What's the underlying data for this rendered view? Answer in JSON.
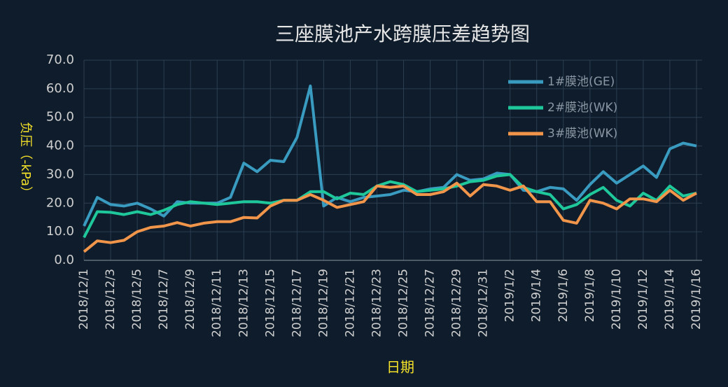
{
  "chart_data": {
    "type": "line",
    "title": "三座膜池产水跨膜压差趋势图",
    "x_label": "日期",
    "y_label": "负压（-kPa）",
    "categories": [
      "2018/12/1",
      null,
      "2018/12/3",
      null,
      "2018/12/5",
      null,
      "2018/12/7",
      null,
      "2018/12/9",
      null,
      "2018/12/11",
      null,
      "2018/12/13",
      null,
      "2018/12/15",
      null,
      "2018/12/17",
      null,
      "2018/12/19",
      null,
      "2018/12/21",
      null,
      "2018/12/23",
      null,
      "2018/12/25",
      null,
      "2018/12/27",
      null,
      "2018/12/29",
      null,
      "2018/12/31",
      null,
      "2019/1/2",
      null,
      "2019/1/4",
      null,
      "2019/1/6",
      null,
      "2019/1/8",
      null,
      "2019/1/10",
      null,
      "2019/1/12",
      null,
      "2019/1/14",
      null,
      "2019/1/16"
    ],
    "series": [
      {
        "name": "1#膜池(GE)",
        "color": "#3a9bc1",
        "values": [
          12,
          22,
          19.5,
          19,
          20,
          18,
          15.5,
          20.5,
          20,
          20,
          20,
          22,
          34,
          31,
          35,
          34.5,
          43,
          61,
          19,
          22,
          20.5,
          22,
          22.5,
          23,
          24.5,
          24,
          25,
          25.5,
          30,
          28,
          28.5,
          30.5,
          30,
          24.5,
          24,
          25.5,
          25,
          21,
          26.5,
          31,
          27,
          30,
          33,
          29,
          39,
          41,
          40
        ]
      },
      {
        "name": "2#膜池(WK)",
        "color": "#1fc89a",
        "values": [
          8,
          17,
          16.8,
          16,
          17,
          16,
          17.5,
          19.5,
          20.5,
          20,
          19.5,
          20,
          20.5,
          20.5,
          20,
          21,
          21,
          24,
          24,
          21.5,
          23.5,
          23,
          26,
          27.5,
          26.5,
          24,
          24.5,
          25,
          26,
          27.5,
          28,
          29.5,
          30,
          25.5,
          24,
          23,
          18,
          19.5,
          23,
          25.5,
          21,
          19,
          23.5,
          21,
          26,
          22.5,
          23.5
        ]
      },
      {
        "name": "3#膜池(WK)",
        "color": "#f0954a",
        "values": [
          3,
          6.8,
          6.2,
          7,
          10,
          11.5,
          12,
          13.2,
          12,
          13,
          13.5,
          13.5,
          15,
          14.8,
          19,
          21,
          21,
          23,
          21,
          18.5,
          19.5,
          20.5,
          26,
          25.5,
          26,
          23,
          23,
          24,
          27,
          22.5,
          26.5,
          26,
          24.5,
          26,
          20.5,
          20.5,
          14,
          13,
          21,
          20,
          18,
          21.5,
          21.5,
          20.5,
          24.5,
          21,
          23.5
        ]
      }
    ],
    "ylim": [
      0,
      70
    ],
    "yticks": [
      {
        "value": 0,
        "label": "0.0"
      },
      {
        "value": 10,
        "label": "10.0"
      },
      {
        "value": 20,
        "label": "20.0"
      },
      {
        "value": 30,
        "label": "30.0"
      },
      {
        "value": 40,
        "label": "40.0"
      },
      {
        "value": 50,
        "label": "50.0"
      },
      {
        "value": 60,
        "label": "60.0"
      },
      {
        "value": 70,
        "label": "70.0"
      }
    ],
    "grid": true,
    "legend": "upper right"
  }
}
